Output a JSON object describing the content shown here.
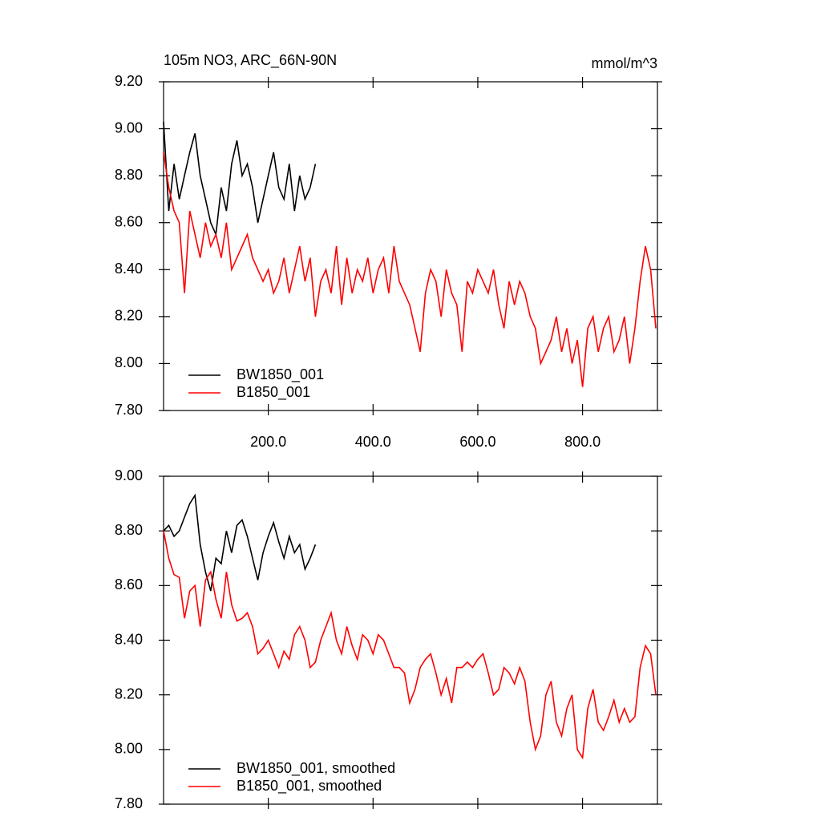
{
  "chart_data": [
    {
      "type": "line",
      "title": "105m NO3, ARC_66N-90N",
      "units": "mmol/m^3",
      "x": [
        0,
        10,
        20,
        30,
        40,
        50,
        60,
        70,
        80,
        90,
        100,
        110,
        120,
        130,
        140,
        150,
        160,
        170,
        180,
        190,
        200,
        210,
        220,
        230,
        240,
        250,
        260,
        270,
        280,
        290,
        300,
        310,
        320,
        330,
        340,
        350,
        360,
        370,
        380,
        390,
        400,
        410,
        420,
        430,
        440,
        450,
        460,
        470,
        480,
        490,
        500,
        510,
        520,
        530,
        540,
        550,
        560,
        570,
        580,
        590,
        600,
        610,
        620,
        630,
        640,
        650,
        660,
        670,
        680,
        690,
        700,
        710,
        720,
        730,
        740,
        750,
        760,
        770,
        780,
        790,
        800,
        810,
        820,
        830,
        840,
        850,
        860,
        870,
        880,
        890,
        900,
        910,
        920,
        930,
        940
      ],
      "series": [
        {
          "name": "BW1850_001",
          "color": "#000000",
          "values": [
            9.03,
            8.65,
            8.85,
            8.7,
            8.8,
            8.9,
            8.98,
            8.8,
            8.7,
            8.6,
            8.55,
            8.75,
            8.65,
            8.85,
            8.95,
            8.8,
            8.85,
            8.75,
            8.6,
            8.7,
            8.8,
            8.9,
            8.75,
            8.7,
            8.85,
            8.65,
            8.8,
            8.7,
            8.75,
            8.85,
            null,
            null,
            null,
            null,
            null,
            null,
            null,
            null,
            null,
            null,
            null,
            null,
            null,
            null,
            null,
            null,
            null,
            null,
            null,
            null,
            null,
            null,
            null,
            null,
            null,
            null,
            null,
            null,
            null,
            null,
            null,
            null,
            null,
            null,
            null,
            null,
            null,
            null,
            null,
            null,
            null,
            null,
            null,
            null,
            null,
            null,
            null,
            null,
            null,
            null,
            null,
            null,
            null,
            null,
            null,
            null,
            null,
            null,
            null,
            null,
            null,
            null,
            null,
            null,
            null
          ]
        },
        {
          "name": "B1850_001",
          "color": "#ff0000",
          "values": [
            8.9,
            8.75,
            8.65,
            8.6,
            8.3,
            8.65,
            8.55,
            8.45,
            8.6,
            8.5,
            8.55,
            8.45,
            8.6,
            8.4,
            8.45,
            8.5,
            8.55,
            8.45,
            8.4,
            8.35,
            8.4,
            8.3,
            8.35,
            8.45,
            8.3,
            8.4,
            8.5,
            8.35,
            8.45,
            8.2,
            8.35,
            8.4,
            8.3,
            8.5,
            8.25,
            8.45,
            8.3,
            8.4,
            8.35,
            8.45,
            8.3,
            8.4,
            8.45,
            8.3,
            8.5,
            8.35,
            8.3,
            8.25,
            8.15,
            8.05,
            8.3,
            8.4,
            8.35,
            8.2,
            8.4,
            8.3,
            8.25,
            8.05,
            8.35,
            8.3,
            8.4,
            8.35,
            8.3,
            8.4,
            8.25,
            8.15,
            8.35,
            8.25,
            8.35,
            8.3,
            8.2,
            8.15,
            8.0,
            8.05,
            8.1,
            8.2,
            8.05,
            8.15,
            8.0,
            8.1,
            7.9,
            8.15,
            8.2,
            8.05,
            8.15,
            8.2,
            8.05,
            8.1,
            8.2,
            8.0,
            8.15,
            8.35,
            8.5,
            8.4,
            8.15
          ]
        }
      ],
      "xlim": [
        0,
        943
      ],
      "ylim": [
        7.8,
        9.2
      ],
      "xticks": [
        {
          "value": 200,
          "label": "200.0"
        },
        {
          "value": 400,
          "label": "400.0"
        },
        {
          "value": 600,
          "label": "600.0"
        },
        {
          "value": 800,
          "label": "800.0"
        }
      ],
      "yticks": [
        {
          "value": 7.8,
          "label": "7.80"
        },
        {
          "value": 8.0,
          "label": "8.00"
        },
        {
          "value": 8.2,
          "label": "8.20"
        },
        {
          "value": 8.4,
          "label": "8.40"
        },
        {
          "value": 8.6,
          "label": "8.60"
        },
        {
          "value": 8.8,
          "label": "8.80"
        },
        {
          "value": 9.0,
          "label": "9.00"
        },
        {
          "value": 9.2,
          "label": "9.20"
        }
      ],
      "legend": "lower left"
    },
    {
      "type": "line",
      "x": [
        0,
        10,
        20,
        30,
        40,
        50,
        60,
        70,
        80,
        90,
        100,
        110,
        120,
        130,
        140,
        150,
        160,
        170,
        180,
        190,
        200,
        210,
        220,
        230,
        240,
        250,
        260,
        270,
        280,
        290,
        300,
        310,
        320,
        330,
        340,
        350,
        360,
        370,
        380,
        390,
        400,
        410,
        420,
        430,
        440,
        450,
        460,
        470,
        480,
        490,
        500,
        510,
        520,
        530,
        540,
        550,
        560,
        570,
        580,
        590,
        600,
        610,
        620,
        630,
        640,
        650,
        660,
        670,
        680,
        690,
        700,
        710,
        720,
        730,
        740,
        750,
        760,
        770,
        780,
        790,
        800,
        810,
        820,
        830,
        840,
        850,
        860,
        870,
        880,
        890,
        900,
        910,
        920,
        930,
        940
      ],
      "series": [
        {
          "name": "BW1850_001, smoothed",
          "color": "#000000",
          "values": [
            8.8,
            8.82,
            8.78,
            8.8,
            8.85,
            8.9,
            8.93,
            8.75,
            8.65,
            8.58,
            8.7,
            8.68,
            8.8,
            8.72,
            8.82,
            8.84,
            8.78,
            8.7,
            8.62,
            8.72,
            8.78,
            8.83,
            8.76,
            8.7,
            8.78,
            8.72,
            8.75,
            8.66,
            8.7,
            8.75,
            null,
            null,
            null,
            null,
            null,
            null,
            null,
            null,
            null,
            null,
            null,
            null,
            null,
            null,
            null,
            null,
            null,
            null,
            null,
            null,
            null,
            null,
            null,
            null,
            null,
            null,
            null,
            null,
            null,
            null,
            null,
            null,
            null,
            null,
            null,
            null,
            null,
            null,
            null,
            null,
            null,
            null,
            null,
            null,
            null,
            null,
            null,
            null,
            null,
            null,
            null,
            null,
            null,
            null,
            null,
            null,
            null,
            null,
            null,
            null,
            null,
            null,
            null,
            null,
            null
          ]
        },
        {
          "name": "B1850_001, smoothed",
          "color": "#ff0000",
          "values": [
            8.8,
            8.7,
            8.64,
            8.63,
            8.48,
            8.58,
            8.6,
            8.45,
            8.62,
            8.65,
            8.55,
            8.48,
            8.65,
            8.53,
            8.47,
            8.48,
            8.5,
            8.45,
            8.35,
            8.37,
            8.4,
            8.35,
            8.3,
            8.36,
            8.33,
            8.42,
            8.45,
            8.4,
            8.3,
            8.32,
            8.4,
            8.45,
            8.5,
            8.4,
            8.35,
            8.45,
            8.38,
            8.33,
            8.42,
            8.4,
            8.35,
            8.42,
            8.4,
            8.35,
            8.3,
            8.3,
            8.28,
            8.17,
            8.22,
            8.3,
            8.33,
            8.35,
            8.28,
            8.2,
            8.26,
            8.17,
            8.3,
            8.3,
            8.32,
            8.3,
            8.33,
            8.35,
            8.28,
            8.2,
            8.22,
            8.3,
            8.28,
            8.24,
            8.3,
            8.25,
            8.1,
            8.0,
            8.05,
            8.2,
            8.25,
            8.1,
            8.05,
            8.15,
            8.2,
            8.0,
            7.97,
            8.15,
            8.22,
            8.1,
            8.07,
            8.12,
            8.18,
            8.1,
            8.15,
            8.1,
            8.12,
            8.3,
            8.38,
            8.35,
            8.2
          ]
        }
      ],
      "xlim": [
        0,
        943
      ],
      "ylim": [
        7.8,
        9.0
      ],
      "xticks": [
        200,
        400,
        600,
        800
      ],
      "yticks": [
        {
          "value": 7.8,
          "label": "7.80"
        },
        {
          "value": 8.0,
          "label": "8.00"
        },
        {
          "value": 8.2,
          "label": "8.20"
        },
        {
          "value": 8.4,
          "label": "8.40"
        },
        {
          "value": 8.6,
          "label": "8.60"
        },
        {
          "value": 8.8,
          "label": "8.80"
        },
        {
          "value": 9.0,
          "label": "9.00"
        }
      ],
      "legend": "lower left"
    }
  ]
}
